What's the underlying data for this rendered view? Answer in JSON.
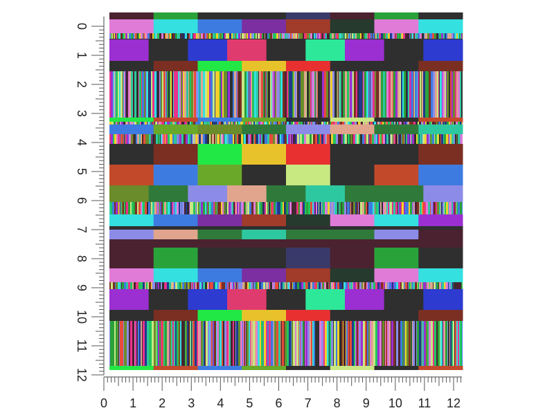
{
  "ruler": {
    "left_labels": [
      "0",
      "1",
      "2",
      "3",
      "4",
      "5",
      "6",
      "7",
      "8",
      "9",
      "10",
      "11",
      "12"
    ],
    "bottom_labels": [
      "0",
      "1",
      "2",
      "3",
      "4",
      "5",
      "6",
      "7",
      "8",
      "9",
      "10",
      "11",
      "12"
    ]
  },
  "pattern": {
    "palette": [
      "#2f2f2f",
      "#e9338b",
      "#34e0e0",
      "#9b2fd1",
      "#2aa23a",
      "#3e7be0",
      "#e84b3b",
      "#f3d12a",
      "#7a2f22",
      "#c8e882",
      "#8c8ce8",
      "#e07bd8",
      "#2ec8a0",
      "#e0a58c",
      "#1f3a8c",
      "#4b2230",
      "#6a8c2a",
      "#22c55e"
    ],
    "block_colors": [
      "#4b2230",
      "#2aa23a",
      "#2f2f2f",
      "#2f2f2f",
      "#3a3a6a",
      "#4b2230",
      "#2aa23a",
      "#2f2f2f",
      "#e07bd8",
      "#34e0e0",
      "#3e7be0",
      "#7b2fa0",
      "#a13b2a",
      "#263a2e",
      "#e07bd8",
      "#34e0e0",
      "#9b2fd1",
      "#2f2f2f",
      "#2d3bd1",
      "#e03b6e",
      "#2f2f2f",
      "#2ee89a",
      "#9b2fd1",
      "#2f2f2f",
      "#2d3bd1",
      "#2f2f2f",
      "#7a2f22",
      "#22e845",
      "#e8c22a",
      "#e83030",
      "#2f2f2f",
      "#2f2f2f",
      "#7a2f22",
      "#22e845",
      "#c24a2a",
      "#3e7be0",
      "#6aa82a",
      "#2f2f2f",
      "#c8e882",
      "#2f2f2f",
      "#c24a2a",
      "#3e7be0",
      "#6aa82a",
      "#6a8c2a",
      "#2f7a3a",
      "#8c8ce8",
      "#e0a58c",
      "#2f7a3a",
      "#2ec8a0",
      "#2f7a3a",
      "#2f7a3a",
      "#8c8ce8"
    ]
  }
}
